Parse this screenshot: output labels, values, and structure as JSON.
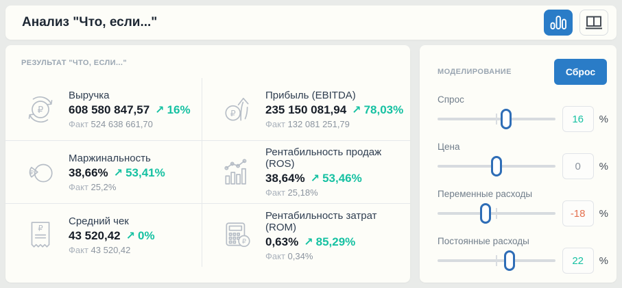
{
  "header": {
    "title": "Анализ \"Что, если...\"",
    "view_buttons": [
      {
        "name": "chart-view",
        "icon": "bar-chart-icon",
        "active": true
      },
      {
        "name": "table-view",
        "icon": "open-book-icon",
        "active": false
      }
    ]
  },
  "icons": {
    "trend_up": "↗"
  },
  "results": {
    "heading": "РЕЗУЛЬТАТ \"ЧТО, ЕСЛИ...\"",
    "fact_label": "Факт",
    "kpis": [
      {
        "icon": "ruble-refresh-icon",
        "title": "Выручка",
        "value": "608 580 847,57",
        "delta": "16%",
        "fact_value": "524 638 661,70"
      },
      {
        "icon": "profit-growth-icon",
        "title": "Прибыль (EBITDA)",
        "value": "235 150 081,94",
        "delta": "78,03%",
        "fact_value": "132 081 251,79"
      },
      {
        "icon": "pie-margin-icon",
        "title": "Маржинальность",
        "value": "38,66%",
        "delta": "53,41%",
        "fact_value": "25,2%"
      },
      {
        "icon": "combo-chart-icon",
        "title": "Рентабильность продаж (ROS)",
        "value": "38,64%",
        "delta": "53,46%",
        "fact_value": "25,18%"
      },
      {
        "icon": "receipt-icon",
        "title": "Средний чек",
        "value": "43 520,42",
        "delta": "0%",
        "fact_value": "43 520,42"
      },
      {
        "icon": "calculator-coin-icon",
        "title": "Рентабильность затрат (ROM)",
        "value": "0,63%",
        "delta": "85,29%",
        "fact_value": "0,34%"
      }
    ]
  },
  "modeling": {
    "heading": "МОДЕЛИРОВАНИЕ",
    "reset_label": "Сброс",
    "unit": "%",
    "min": -100,
    "max": 100,
    "sliders": [
      {
        "label": "Спрос",
        "value": 16,
        "display": "16",
        "value_color": "#16c1a2"
      },
      {
        "label": "Цена",
        "value": 0,
        "display": "0",
        "value_color": "#8a929c"
      },
      {
        "label": "Переменные расходы",
        "value": -18,
        "display": "-18",
        "value_color": "#e4704e"
      },
      {
        "label": "Постоянные расходы",
        "value": 22,
        "display": "22",
        "value_color": "#16c1a2"
      }
    ]
  },
  "colors": {
    "accent_blue": "#2a7cc7",
    "teal": "#16c1a2",
    "orange": "#e4704e",
    "page_background": "#e9ebe9",
    "panel_background": "#fdfdf8"
  }
}
